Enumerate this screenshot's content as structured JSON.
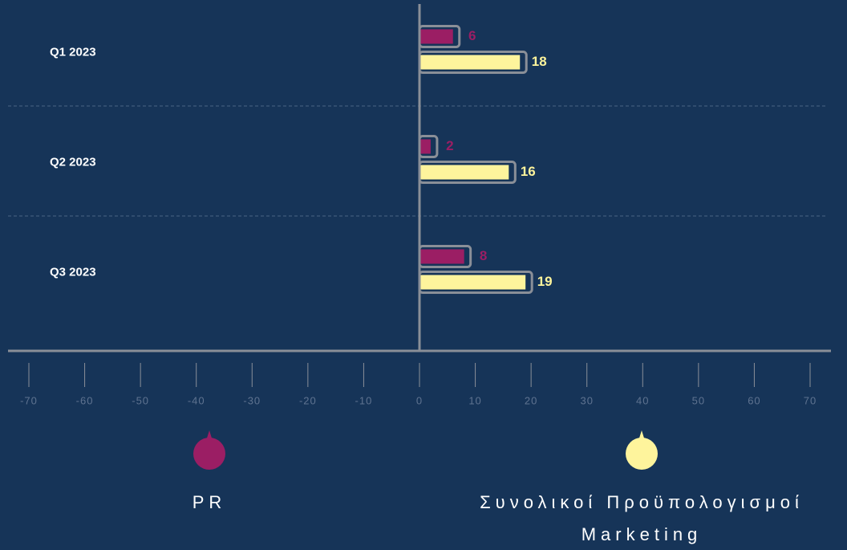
{
  "chart_data": {
    "type": "bar",
    "categories": [
      "Q1 2023",
      "Q2 2023",
      "Q3 2023"
    ],
    "series": [
      {
        "name": "PR",
        "color": "#9b1e64",
        "values": [
          6,
          2,
          8
        ]
      },
      {
        "name": "Συνολικοί Προϋπολογισμοί Marketing",
        "color": "#fef49c",
        "values": [
          18,
          16,
          19
        ]
      }
    ],
    "xlim": [
      -70,
      70
    ],
    "xticks": [
      -70,
      -60,
      -50,
      -40,
      -30,
      -20,
      -10,
      0,
      10,
      20,
      30,
      40,
      50,
      60,
      70
    ],
    "grid": true
  }
}
